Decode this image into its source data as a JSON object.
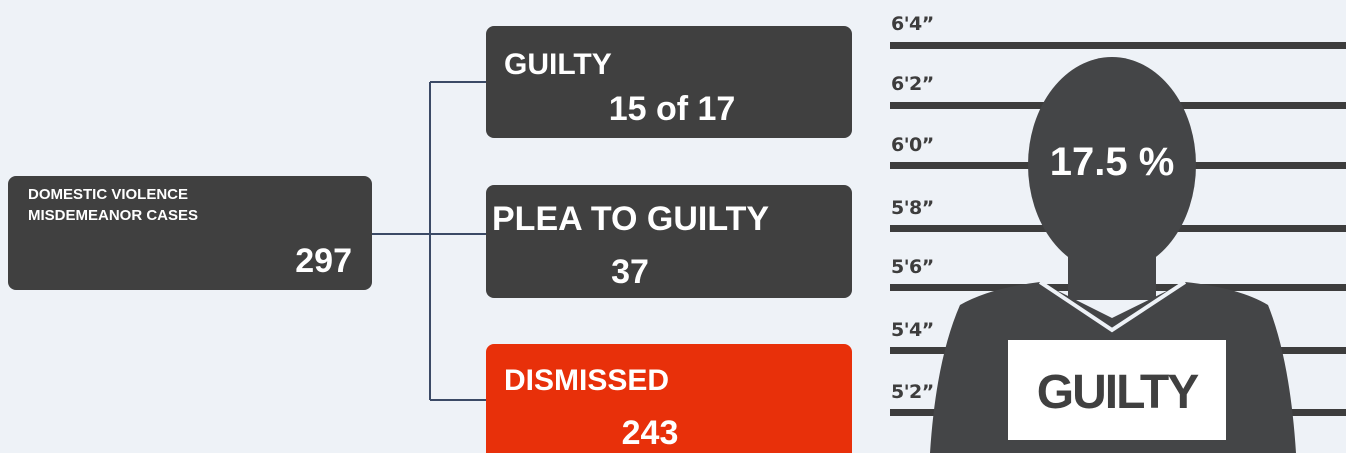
{
  "root": {
    "label_lines": [
      "DOMESTIC VIOLENCE",
      "MISDEMEANOR CASES"
    ],
    "total": "297"
  },
  "outcomes": [
    {
      "label": "GUILTY",
      "value": "15 of 17"
    },
    {
      "label": "PLEA TO GUILTY",
      "value": "37"
    },
    {
      "label": "DISMISSED",
      "value": "243"
    }
  ],
  "mugshot": {
    "heights": [
      "6'4”",
      "6'2”",
      "6'0”",
      "5'8”",
      "5'6”",
      "5'4”",
      "5'2”"
    ],
    "percent": "17.5 %",
    "sign": "GUILTY"
  }
}
